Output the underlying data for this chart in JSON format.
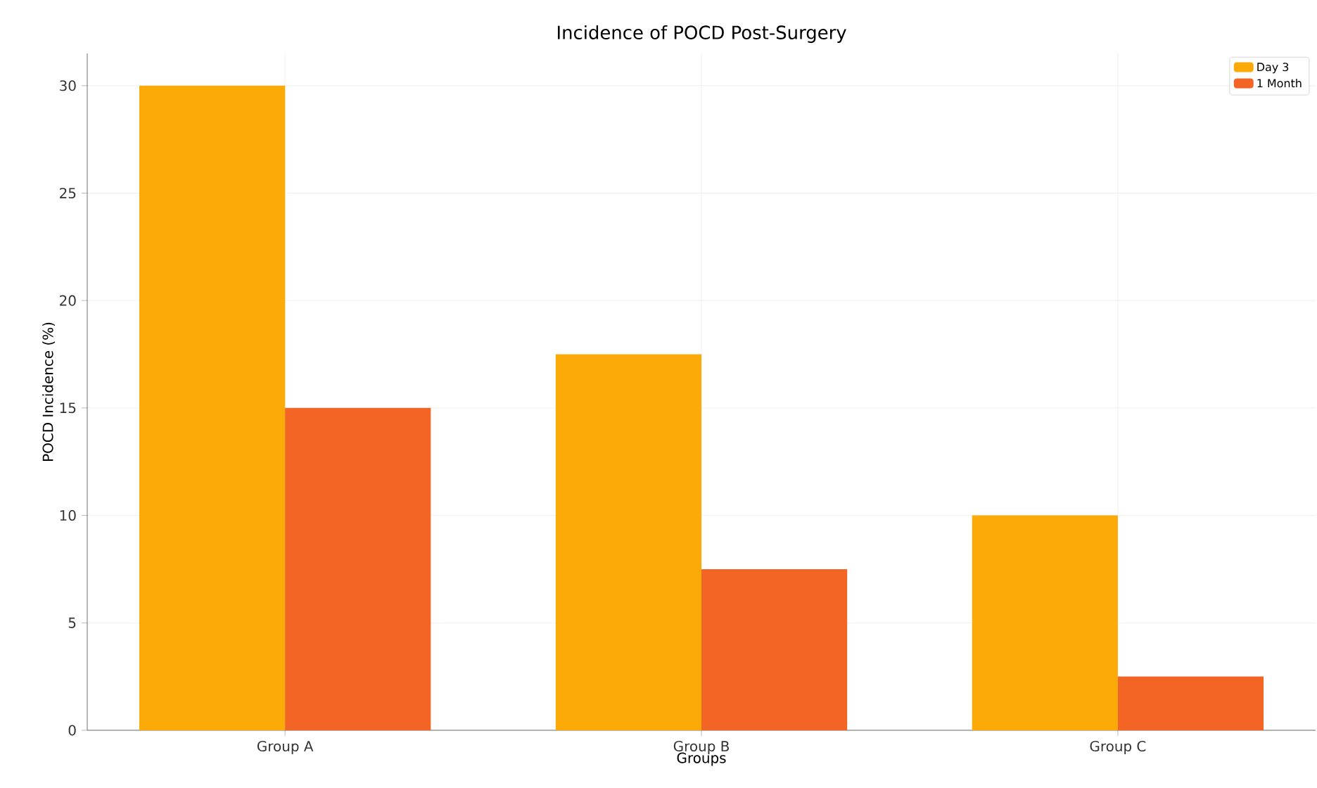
{
  "chart_data": {
    "type": "bar",
    "title": "Incidence of POCD Post-Surgery",
    "xlabel": "Groups",
    "ylabel": "POCD Incidence (%)",
    "categories": [
      "Group A",
      "Group B",
      "Group C"
    ],
    "series": [
      {
        "name": "Day 3",
        "color": "#fbaa08",
        "values": [
          30,
          17.5,
          10
        ]
      },
      {
        "name": "1 Month",
        "color": "#f26524",
        "values": [
          15,
          7.5,
          2.5
        ]
      }
    ],
    "ylim": [
      0,
      31.5
    ],
    "yticks": [
      0,
      5,
      10,
      15,
      20,
      25,
      30
    ],
    "grid": true,
    "legend": "top right"
  }
}
